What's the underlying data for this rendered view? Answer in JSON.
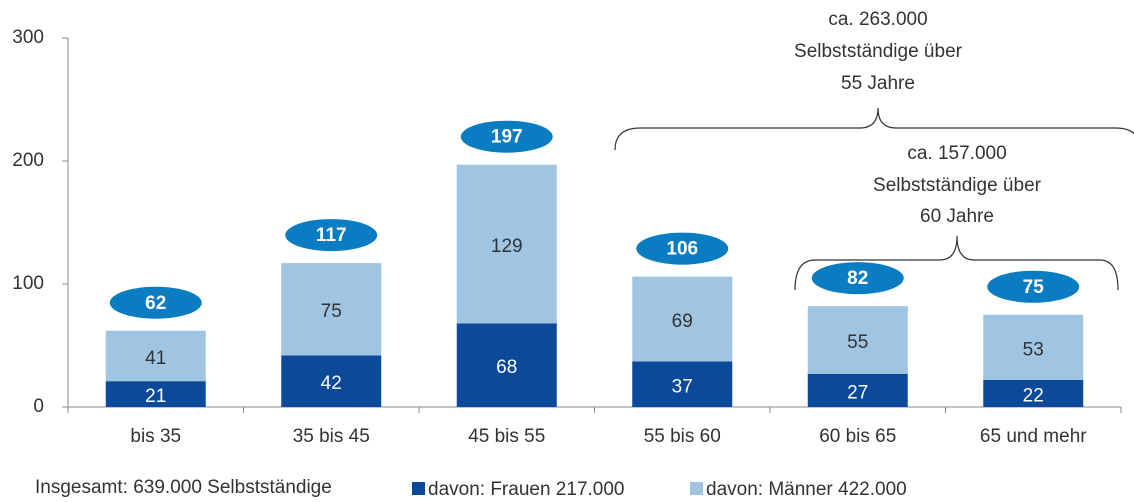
{
  "chart_data": {
    "type": "stacked_bar",
    "categories": [
      "bis 35",
      "35 bis 45",
      "45 bis 55",
      "55 bis 60",
      "60 bis 65",
      "65 und mehr"
    ],
    "series": [
      {
        "name": "davon: Frauen 217.000",
        "color": "#0b4a9b",
        "values": [
          21,
          42,
          68,
          37,
          27,
          22
        ]
      },
      {
        "name": "davon: Männer 422.000",
        "color": "#9fc5e2",
        "values": [
          41,
          75,
          129,
          69,
          55,
          53
        ]
      }
    ],
    "totals": [
      62,
      117,
      197,
      106,
      82,
      75
    ],
    "total_color": "#0a7dc2",
    "ylim": [
      0,
      300
    ],
    "yticks": [
      0,
      100,
      200,
      300
    ],
    "annotations": [
      {
        "lines": [
          "ca. 263.000",
          "Selbstständige über",
          "55 Jahre"
        ]
      },
      {
        "lines": [
          "ca. 157.000",
          "Selbstständige über",
          "60 Jahre"
        ]
      }
    ],
    "footnote": "Insgesamt: 639.000 Selbstständige"
  }
}
